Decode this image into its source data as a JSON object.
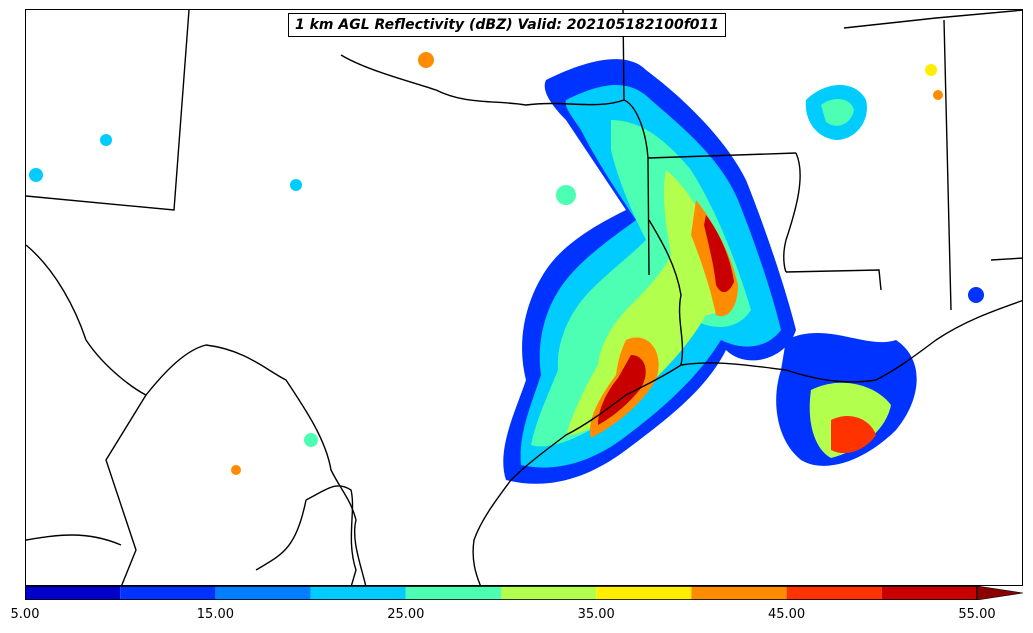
{
  "title": "1 km AGL Reflectivity (dBZ) Valid: 202105182100f011",
  "colorbar": {
    "tick_labels": [
      "5.00",
      "15.00",
      "25.00",
      "35.00",
      "45.00",
      "55.00"
    ],
    "tick_values": [
      5,
      15,
      25,
      35,
      45,
      55
    ],
    "range": [
      5,
      55
    ],
    "extend": "max",
    "levels": [
      {
        "min": 5,
        "max": 10,
        "color": "#0000c8"
      },
      {
        "min": 10,
        "max": 15,
        "color": "#0033ff"
      },
      {
        "min": 15,
        "max": 20,
        "color": "#007fff"
      },
      {
        "min": 20,
        "max": 25,
        "color": "#00ccff"
      },
      {
        "min": 25,
        "max": 30,
        "color": "#4dffb3"
      },
      {
        "min": 30,
        "max": 35,
        "color": "#b3ff4d"
      },
      {
        "min": 35,
        "max": 40,
        "color": "#ffee00"
      },
      {
        "min": 40,
        "max": 45,
        "color": "#ff8c00"
      },
      {
        "min": 45,
        "max": 50,
        "color": "#ff3300"
      },
      {
        "min": 50,
        "max": 55,
        "color": "#c80000"
      }
    ],
    "overflow_color": "#8b0000"
  }
}
